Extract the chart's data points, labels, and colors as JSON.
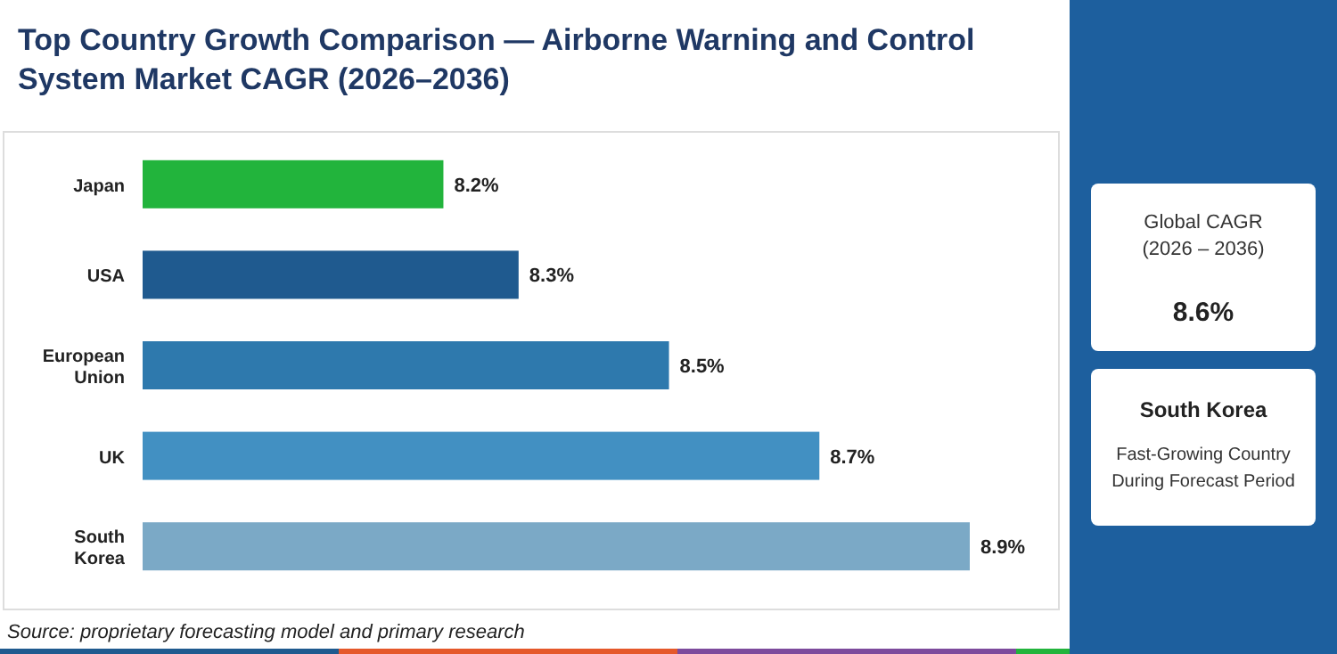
{
  "chart_data": {
    "type": "bar",
    "orientation": "horizontal",
    "title": "Top Country Growth Comparison — Airborne Warning and Control System Market CAGR (2026–2036)",
    "categories": [
      "Japan",
      "USA",
      "European Union",
      "UK",
      "South Korea"
    ],
    "values": [
      8.2,
      8.3,
      8.5,
      8.7,
      8.9
    ],
    "colors": [
      "#22b43c",
      "#1f5a8f",
      "#2e79ad",
      "#4290c2",
      "#7ba9c6"
    ],
    "value_labels": [
      "8.2%",
      "8.3%",
      "8.5%",
      "8.7%",
      "8.9%"
    ],
    "xlim": [
      7.8,
      8.9
    ],
    "annotations": [
      "Source: proprietary forecasting model and primary research",
      "Global CAGR (2026 – 2036)",
      "8.6%",
      "South Korea",
      "Fast-Growing Country During Forecast Period"
    ]
  }
}
